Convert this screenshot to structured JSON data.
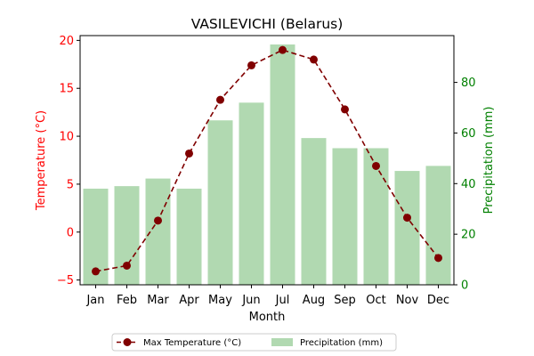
{
  "chart_data": {
    "type": "bar+line",
    "title": "VASILEVICHI (Belarus)",
    "xlabel": "Month",
    "categories": [
      "Jan",
      "Feb",
      "Mar",
      "Apr",
      "May",
      "Jun",
      "Jul",
      "Aug",
      "Sep",
      "Oct",
      "Nov",
      "Dec"
    ],
    "series": [
      {
        "name": "Max Temperature (°C)",
        "type": "line",
        "axis": "left",
        "color": "#800000",
        "style": "dashed-with-circle-markers",
        "values": [
          -4.1,
          -3.5,
          1.2,
          8.2,
          13.8,
          17.4,
          19.0,
          18.0,
          12.8,
          6.9,
          1.5,
          -2.7
        ]
      },
      {
        "name": "Precipitation (mm)",
        "type": "bar",
        "axis": "right",
        "color": "#b1d9b1",
        "values": [
          38,
          39,
          42,
          38,
          65,
          72,
          95,
          58,
          54,
          54,
          45,
          47
        ]
      }
    ],
    "left_axis": {
      "label": "Temperature (°C)",
      "color": "#ff0000",
      "ylim": [
        -5.5,
        20.5
      ],
      "ticks": [
        -5,
        0,
        5,
        10,
        15,
        20
      ]
    },
    "right_axis": {
      "label": "Precipitation (mm)",
      "color": "#008000",
      "ylim": [
        0,
        98.5
      ],
      "ticks": [
        0,
        20,
        40,
        60,
        80
      ]
    },
    "grid": false,
    "legend_position": "bottom-center"
  }
}
